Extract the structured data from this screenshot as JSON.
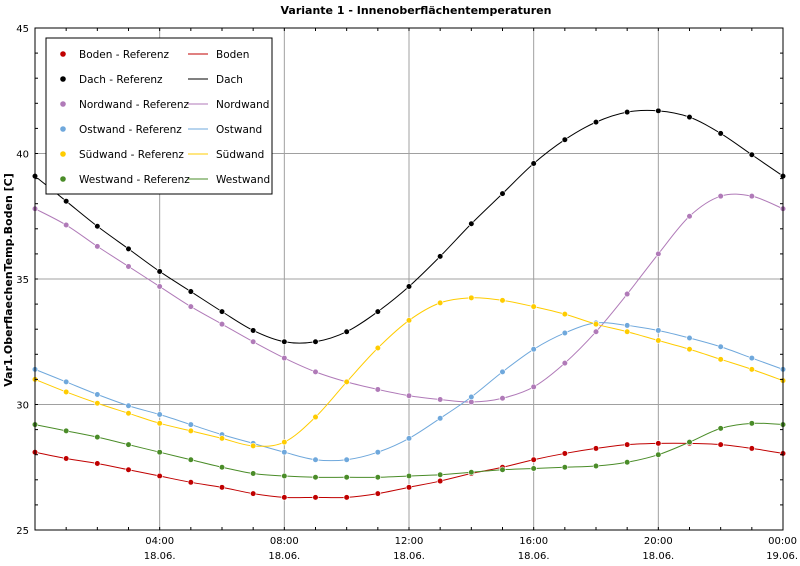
{
  "chart_data": {
    "type": "line",
    "title": "Variante 1 - Innenoberflächentemperaturen",
    "xlabel": "",
    "ylabel": "Var1.OberflaechenTemp.Boden [C]",
    "ylim": [
      25,
      45
    ],
    "xlim": [
      0,
      24
    ],
    "y_ticks": [
      "25",
      "30",
      "35",
      "40",
      "45"
    ],
    "x_ticks": [
      {
        "time": "04:00",
        "date": "18.06.",
        "x": 4
      },
      {
        "time": "08:00",
        "date": "18.06.",
        "x": 8
      },
      {
        "time": "12:00",
        "date": "18.06.",
        "x": 12
      },
      {
        "time": "16:00",
        "date": "18.06.",
        "x": 16
      },
      {
        "time": "20:00",
        "date": "18.06.",
        "x": 20
      },
      {
        "time": "00:00",
        "date": "19.06.",
        "x": 24
      }
    ],
    "grid": true,
    "legend_position": "top-left",
    "x": [
      0,
      1,
      2,
      3,
      4,
      5,
      6,
      7,
      8,
      9,
      10,
      11,
      12,
      13,
      14,
      15,
      16,
      17,
      18,
      19,
      20,
      21,
      22,
      23,
      24
    ],
    "series": [
      {
        "name": "Boden",
        "ref_name": "Boden - Referenz",
        "color": "#c00000",
        "values": [
          28.1,
          27.85,
          27.65,
          27.4,
          27.15,
          26.9,
          26.7,
          26.45,
          26.3,
          26.3,
          26.3,
          26.45,
          26.7,
          26.95,
          27.25,
          27.5,
          27.8,
          28.05,
          28.25,
          28.4,
          28.45,
          28.45,
          28.4,
          28.25,
          28.05
        ]
      },
      {
        "name": "Dach",
        "ref_name": "Dach - Referenz",
        "color": "#000000",
        "values": [
          39.1,
          38.1,
          37.1,
          36.2,
          35.3,
          34.5,
          33.7,
          32.95,
          32.5,
          32.5,
          32.9,
          33.7,
          34.7,
          35.9,
          37.2,
          38.4,
          39.6,
          40.55,
          41.25,
          41.65,
          41.7,
          41.45,
          40.8,
          39.95,
          39.1
        ]
      },
      {
        "name": "Nordwand",
        "ref_name": "Nordwand - Referenz",
        "color": "#b07ab8",
        "values": [
          37.8,
          37.15,
          36.3,
          35.5,
          34.7,
          33.9,
          33.2,
          32.5,
          31.85,
          31.3,
          30.9,
          30.6,
          30.35,
          30.2,
          30.1,
          30.25,
          30.7,
          31.65,
          32.9,
          34.4,
          36.0,
          37.5,
          38.3,
          38.3,
          37.8
        ]
      },
      {
        "name": "Ostwand",
        "ref_name": "Ostwand - Referenz",
        "color": "#6fa8dc",
        "values": [
          31.4,
          30.9,
          30.4,
          29.95,
          29.6,
          29.2,
          28.8,
          28.45,
          28.1,
          27.8,
          27.8,
          28.1,
          28.65,
          29.45,
          30.3,
          31.3,
          32.2,
          32.85,
          33.25,
          33.15,
          32.95,
          32.65,
          32.3,
          31.85,
          31.4
        ]
      },
      {
        "name": "Südwand",
        "ref_name": "Südwand - Referenz",
        "color": "#ffcc00",
        "values": [
          31.0,
          30.5,
          30.05,
          29.65,
          29.25,
          28.95,
          28.65,
          28.35,
          28.5,
          29.5,
          30.9,
          32.25,
          33.35,
          34.05,
          34.25,
          34.15,
          33.9,
          33.6,
          33.2,
          32.9,
          32.55,
          32.2,
          31.8,
          31.4,
          30.95
        ]
      },
      {
        "name": "Westwand",
        "ref_name": "Westwand - Referenz",
        "color": "#4a8c28",
        "values": [
          29.2,
          28.95,
          28.7,
          28.4,
          28.1,
          27.8,
          27.5,
          27.25,
          27.15,
          27.1,
          27.1,
          27.1,
          27.15,
          27.2,
          27.3,
          27.4,
          27.45,
          27.5,
          27.55,
          27.7,
          28.0,
          28.5,
          29.05,
          29.25,
          29.2
        ]
      }
    ]
  }
}
